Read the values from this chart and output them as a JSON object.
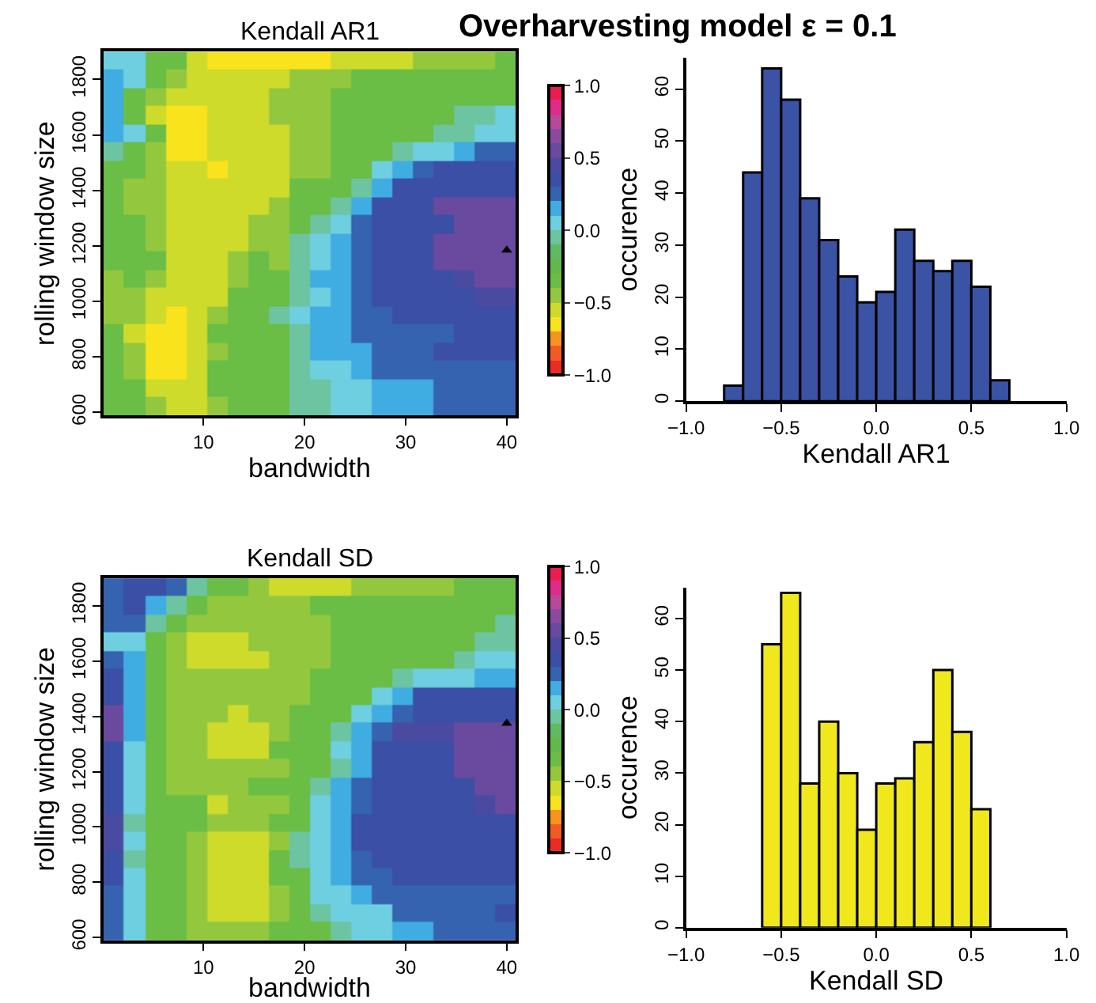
{
  "chart_data": [
    {
      "type": "heatmap",
      "title": "Kendall AR1",
      "xlabel": "bandwidth",
      "ylabel": "rolling window size",
      "annotations": [
        "Overharvesting model ε = 0.1"
      ],
      "x": [
        1.1,
        3.2,
        5.2,
        7.3,
        9.3,
        11.3,
        13.4,
        15.4,
        17.4,
        19.5,
        21.5,
        23.5,
        25.6,
        27.6,
        29.7,
        31.7,
        33.7,
        35.8,
        37.8,
        39.8
      ],
      "y": [
        1867,
        1802,
        1736,
        1671,
        1605,
        1540,
        1474,
        1409,
        1343,
        1278,
        1212,
        1147,
        1081,
        1016,
        950,
        885,
        819,
        754,
        688,
        623
      ],
      "xlim": [
        0.1,
        40.9
      ],
      "xticks": [
        10,
        20,
        30,
        40
      ],
      "ylim": [
        590,
        1900
      ],
      "yticks": [
        600,
        800,
        1000,
        1200,
        1400,
        1600,
        1800
      ],
      "clim": [
        -1,
        1
      ],
      "cticks": [
        {
          "value": -1,
          "label": "−1.0"
        },
        {
          "value": -0.5,
          "label": "−0.5"
        },
        {
          "value": 0,
          "label": "0.0"
        },
        {
          "value": 0.5,
          "label": "0.5"
        },
        {
          "value": 1,
          "label": "1.0"
        }
      ],
      "colors": [
        "#ee2a24",
        "#f15a24",
        "#f7941d",
        "#f9e31c",
        "#cfdb2b",
        "#93c83e",
        "#6abd45",
        "#62b94a",
        "#5fba62",
        "#6cc5a0",
        "#6dcfe0",
        "#3fade2",
        "#3563b0",
        "#3a4fa5",
        "#4a4ba0",
        "#6a4a9f",
        "#8a4a9f",
        "#b8489a",
        "#e22a8a",
        "#ec1c4f"
      ],
      "series": [
        {
          "type": "scatter",
          "x": [
            40
          ],
          "values": [
            1185
          ],
          "color": "#000000",
          "marker": "triangle"
        }
      ],
      "cells": [
        [
          0.05,
          0.05,
          -0.35,
          -0.35,
          -0.55,
          -0.65,
          -0.65,
          -0.65,
          -0.65,
          -0.65,
          -0.65,
          -0.55,
          -0.55,
          -0.55,
          -0.55,
          -0.45,
          -0.45,
          -0.45,
          -0.45,
          -0.35
        ],
        [
          0.15,
          0.05,
          -0.35,
          -0.45,
          -0.55,
          -0.55,
          -0.55,
          -0.55,
          -0.55,
          -0.45,
          -0.45,
          -0.45,
          -0.35,
          -0.35,
          -0.35,
          -0.35,
          -0.35,
          -0.35,
          -0.35,
          -0.35
        ],
        [
          0.15,
          -0.35,
          -0.45,
          -0.55,
          -0.55,
          -0.55,
          -0.55,
          -0.55,
          -0.45,
          -0.45,
          -0.45,
          -0.35,
          -0.35,
          -0.35,
          -0.35,
          -0.35,
          -0.35,
          -0.35,
          -0.35,
          -0.35
        ],
        [
          0.15,
          -0.35,
          -0.55,
          -0.65,
          -0.65,
          -0.55,
          -0.55,
          -0.55,
          -0.45,
          -0.45,
          -0.45,
          -0.35,
          -0.35,
          -0.35,
          -0.35,
          -0.35,
          -0.35,
          -0.05,
          -0.05,
          0.05
        ],
        [
          0.15,
          0.05,
          -0.35,
          -0.65,
          -0.65,
          -0.55,
          -0.55,
          -0.55,
          -0.55,
          -0.45,
          -0.45,
          -0.35,
          -0.35,
          -0.35,
          -0.35,
          -0.35,
          -0.05,
          -0.05,
          0.05,
          0.05
        ],
        [
          -0.05,
          -0.35,
          -0.45,
          -0.65,
          -0.65,
          -0.55,
          -0.55,
          -0.55,
          -0.55,
          -0.45,
          -0.45,
          -0.35,
          -0.35,
          -0.35,
          -0.05,
          0.05,
          0.05,
          0.15,
          0.25,
          0.25
        ],
        [
          -0.35,
          -0.35,
          -0.45,
          -0.55,
          -0.55,
          -0.65,
          -0.55,
          -0.55,
          -0.55,
          -0.45,
          -0.45,
          -0.35,
          -0.35,
          0.05,
          0.15,
          0.25,
          0.35,
          0.35,
          0.35,
          0.35
        ],
        [
          -0.35,
          -0.45,
          -0.45,
          -0.55,
          -0.55,
          -0.55,
          -0.55,
          -0.55,
          -0.55,
          -0.35,
          -0.35,
          -0.35,
          -0.05,
          0.15,
          0.35,
          0.35,
          0.35,
          0.35,
          0.35,
          0.35
        ],
        [
          -0.35,
          -0.45,
          -0.45,
          -0.55,
          -0.55,
          -0.55,
          -0.55,
          -0.55,
          -0.45,
          -0.35,
          -0.35,
          -0.05,
          0.15,
          0.35,
          0.35,
          0.35,
          0.55,
          0.55,
          0.55,
          0.55
        ],
        [
          -0.35,
          -0.35,
          -0.45,
          -0.55,
          -0.55,
          -0.55,
          -0.55,
          -0.45,
          -0.45,
          -0.35,
          -0.05,
          0.05,
          0.25,
          0.35,
          0.35,
          0.35,
          0.35,
          0.55,
          0.55,
          0.55
        ],
        [
          -0.35,
          -0.35,
          -0.45,
          -0.55,
          -0.55,
          -0.55,
          -0.55,
          -0.45,
          -0.45,
          -0.05,
          0.05,
          0.15,
          0.25,
          0.35,
          0.35,
          0.35,
          0.55,
          0.55,
          0.55,
          0.55
        ],
        [
          -0.35,
          -0.35,
          -0.35,
          -0.55,
          -0.55,
          -0.55,
          -0.45,
          -0.35,
          -0.45,
          -0.05,
          0.05,
          0.15,
          0.25,
          0.35,
          0.35,
          0.35,
          0.55,
          0.55,
          0.55,
          0.55
        ],
        [
          -0.45,
          -0.35,
          -0.45,
          -0.55,
          -0.55,
          -0.55,
          -0.45,
          -0.35,
          -0.35,
          -0.05,
          0.15,
          0.15,
          0.25,
          0.35,
          0.35,
          0.35,
          0.35,
          0.45,
          0.55,
          0.55
        ],
        [
          -0.45,
          -0.45,
          -0.55,
          -0.55,
          -0.55,
          -0.55,
          -0.35,
          -0.35,
          -0.35,
          -0.05,
          0.05,
          0.15,
          0.25,
          0.35,
          0.35,
          0.35,
          0.35,
          0.35,
          0.45,
          0.45
        ],
        [
          -0.45,
          -0.45,
          -0.55,
          -0.65,
          -0.55,
          -0.45,
          -0.35,
          -0.35,
          -0.05,
          0.05,
          0.15,
          0.15,
          0.25,
          0.25,
          0.35,
          0.35,
          0.35,
          0.35,
          0.35,
          0.35
        ],
        [
          -0.35,
          -0.55,
          -0.65,
          -0.65,
          -0.55,
          -0.35,
          -0.35,
          -0.35,
          -0.35,
          -0.05,
          0.15,
          0.15,
          0.25,
          0.25,
          0.25,
          0.25,
          0.25,
          0.35,
          0.35,
          0.35
        ],
        [
          -0.35,
          -0.45,
          -0.65,
          -0.65,
          -0.55,
          -0.45,
          -0.35,
          -0.35,
          -0.35,
          -0.05,
          0.15,
          0.15,
          0.15,
          0.25,
          0.25,
          0.25,
          0.35,
          0.35,
          0.35,
          0.35
        ],
        [
          -0.35,
          -0.45,
          -0.65,
          -0.65,
          -0.55,
          -0.35,
          -0.35,
          -0.35,
          -0.35,
          -0.05,
          0.05,
          0.05,
          0.15,
          0.25,
          0.25,
          0.25,
          0.25,
          0.25,
          0.25,
          0.25
        ],
        [
          -0.35,
          -0.35,
          -0.55,
          -0.55,
          -0.55,
          -0.35,
          -0.35,
          -0.35,
          -0.35,
          -0.05,
          -0.05,
          0.05,
          0.05,
          0.15,
          0.15,
          0.15,
          0.25,
          0.25,
          0.25,
          0.25
        ],
        [
          -0.35,
          -0.35,
          -0.45,
          -0.55,
          -0.55,
          -0.45,
          -0.35,
          -0.35,
          -0.35,
          -0.05,
          -0.05,
          0.05,
          0.05,
          0.15,
          0.15,
          0.15,
          0.25,
          0.25,
          0.25,
          0.25
        ]
      ]
    },
    {
      "type": "histogram",
      "xlabel": "Kendall AR1",
      "ylabel": "occurence",
      "color": "#3a53a4",
      "bins": [
        -0.8,
        -0.7,
        -0.6,
        -0.5,
        -0.4,
        -0.3,
        -0.2,
        -0.1,
        0.0,
        0.1,
        0.2,
        0.3,
        0.4,
        0.5,
        0.6,
        0.7
      ],
      "values": [
        3,
        44,
        64,
        58,
        39,
        31,
        24,
        19,
        21,
        33,
        27,
        25,
        27,
        22,
        4
      ],
      "xlim": [
        -1,
        1
      ],
      "xticks": [
        {
          "value": -1,
          "label": "−1.0"
        },
        {
          "value": -0.5,
          "label": "−0.5"
        },
        {
          "value": 0,
          "label": "0.0"
        },
        {
          "value": 0.5,
          "label": "0.5"
        },
        {
          "value": 1,
          "label": "1.0"
        }
      ],
      "ylim": [
        0,
        66
      ],
      "yticks": [
        0,
        10,
        20,
        30,
        40,
        50,
        60
      ]
    },
    {
      "type": "heatmap",
      "title": "Kendall SD",
      "xlabel": "bandwidth",
      "ylabel": "rolling window size",
      "x": [
        1.1,
        3.2,
        5.2,
        7.3,
        9.3,
        11.3,
        13.4,
        15.4,
        17.4,
        19.5,
        21.5,
        23.5,
        25.6,
        27.6,
        29.7,
        31.7,
        33.7,
        35.8,
        37.8,
        39.8
      ],
      "y": [
        1867,
        1802,
        1736,
        1671,
        1605,
        1540,
        1474,
        1409,
        1343,
        1278,
        1212,
        1147,
        1081,
        1016,
        950,
        885,
        819,
        754,
        688,
        623
      ],
      "xlim": [
        0.1,
        40.9
      ],
      "xticks": [
        10,
        20,
        30,
        40
      ],
      "ylim": [
        590,
        1900
      ],
      "yticks": [
        600,
        800,
        1000,
        1200,
        1400,
        1600,
        1800
      ],
      "clim": [
        -1,
        1
      ],
      "cticks": [
        {
          "value": -1,
          "label": "−1.0"
        },
        {
          "value": -0.5,
          "label": "−0.5"
        },
        {
          "value": 0,
          "label": "0.0"
        },
        {
          "value": 0.5,
          "label": "0.5"
        },
        {
          "value": 1,
          "label": "1.0"
        }
      ],
      "colors": [
        "#ee2a24",
        "#f15a24",
        "#f7941d",
        "#f9e31c",
        "#cfdb2b",
        "#93c83e",
        "#6abd45",
        "#62b94a",
        "#5fba62",
        "#6cc5a0",
        "#6dcfe0",
        "#3fade2",
        "#3563b0",
        "#3a4fa5",
        "#4a4ba0",
        "#6a4a9f",
        "#8a4a9f",
        "#b8489a",
        "#e22a8a",
        "#ec1c4f"
      ],
      "series": [
        {
          "type": "scatter",
          "x": [
            40
          ],
          "values": [
            1375
          ],
          "color": "#000000",
          "marker": "triangle"
        }
      ],
      "cells": [
        [
          0.25,
          0.35,
          0.35,
          0.25,
          -0.05,
          -0.35,
          -0.35,
          -0.45,
          -0.55,
          -0.55,
          -0.55,
          -0.55,
          -0.45,
          -0.45,
          -0.45,
          -0.45,
          -0.45,
          -0.35,
          -0.35,
          -0.35
        ],
        [
          0.25,
          0.35,
          0.15,
          -0.05,
          -0.35,
          -0.45,
          -0.45,
          -0.45,
          -0.45,
          -0.45,
          -0.35,
          -0.35,
          -0.35,
          -0.35,
          -0.35,
          -0.35,
          -0.35,
          -0.35,
          -0.35,
          -0.35
        ],
        [
          0.25,
          0.25,
          -0.05,
          -0.35,
          -0.45,
          -0.45,
          -0.45,
          -0.45,
          -0.45,
          -0.45,
          -0.45,
          -0.35,
          -0.35,
          -0.35,
          -0.35,
          -0.35,
          -0.35,
          -0.35,
          -0.35,
          -0.05
        ],
        [
          0.05,
          0.05,
          -0.35,
          -0.45,
          -0.55,
          -0.55,
          -0.55,
          -0.45,
          -0.45,
          -0.45,
          -0.45,
          -0.35,
          -0.35,
          -0.35,
          -0.35,
          -0.35,
          -0.35,
          -0.35,
          -0.05,
          -0.05
        ],
        [
          0.25,
          0.15,
          -0.35,
          -0.45,
          -0.55,
          -0.55,
          -0.55,
          -0.55,
          -0.45,
          -0.45,
          -0.45,
          -0.35,
          -0.35,
          -0.35,
          -0.35,
          -0.35,
          -0.35,
          -0.05,
          0.05,
          0.05
        ],
        [
          0.35,
          0.15,
          -0.35,
          -0.45,
          -0.45,
          -0.45,
          -0.45,
          -0.45,
          -0.45,
          -0.45,
          -0.35,
          -0.35,
          -0.35,
          -0.35,
          -0.05,
          0.05,
          0.05,
          0.05,
          0.15,
          0.15
        ],
        [
          0.35,
          0.15,
          -0.35,
          -0.45,
          -0.45,
          -0.45,
          -0.45,
          -0.45,
          -0.45,
          -0.45,
          -0.35,
          -0.35,
          -0.35,
          0.05,
          0.15,
          0.35,
          0.35,
          0.35,
          0.35,
          0.35
        ],
        [
          0.55,
          0.15,
          -0.35,
          -0.45,
          -0.45,
          -0.45,
          -0.55,
          -0.45,
          -0.45,
          -0.35,
          -0.35,
          -0.35,
          0.05,
          0.15,
          0.25,
          0.35,
          0.35,
          0.35,
          0.35,
          0.35
        ],
        [
          0.55,
          0.15,
          -0.35,
          -0.45,
          -0.45,
          -0.55,
          -0.55,
          -0.55,
          -0.45,
          -0.35,
          -0.35,
          -0.05,
          0.15,
          0.25,
          0.45,
          0.45,
          0.45,
          0.55,
          0.55,
          0.55
        ],
        [
          0.35,
          0.05,
          -0.35,
          -0.45,
          -0.45,
          -0.55,
          -0.55,
          -0.55,
          -0.35,
          -0.35,
          -0.35,
          0.05,
          0.15,
          0.35,
          0.35,
          0.35,
          0.35,
          0.55,
          0.55,
          0.55
        ],
        [
          0.35,
          0.05,
          -0.35,
          -0.45,
          -0.45,
          -0.45,
          -0.45,
          -0.45,
          -0.45,
          -0.35,
          -0.35,
          -0.05,
          0.15,
          0.35,
          0.35,
          0.35,
          0.35,
          0.55,
          0.55,
          0.55
        ],
        [
          0.35,
          0.05,
          -0.35,
          -0.45,
          -0.45,
          -0.45,
          -0.45,
          -0.35,
          -0.35,
          -0.35,
          -0.05,
          0.15,
          0.25,
          0.35,
          0.35,
          0.35,
          0.35,
          0.35,
          0.55,
          0.55
        ],
        [
          0.35,
          0.05,
          -0.35,
          -0.35,
          -0.35,
          -0.55,
          -0.45,
          -0.45,
          -0.45,
          -0.35,
          0.05,
          0.15,
          0.25,
          0.35,
          0.35,
          0.35,
          0.35,
          0.35,
          0.45,
          0.55
        ],
        [
          0.45,
          -0.05,
          -0.35,
          -0.35,
          -0.35,
          -0.45,
          -0.45,
          -0.45,
          -0.35,
          -0.35,
          0.05,
          0.15,
          0.35,
          0.35,
          0.35,
          0.35,
          0.35,
          0.35,
          0.35,
          0.35
        ],
        [
          0.45,
          0.05,
          -0.35,
          -0.35,
          -0.45,
          -0.55,
          -0.55,
          -0.55,
          -0.45,
          -0.05,
          0.05,
          0.15,
          0.35,
          0.35,
          0.35,
          0.35,
          0.35,
          0.35,
          0.35,
          0.35
        ],
        [
          0.35,
          -0.05,
          -0.35,
          -0.35,
          -0.45,
          -0.55,
          -0.55,
          -0.55,
          -0.35,
          -0.05,
          0.05,
          0.15,
          0.25,
          0.35,
          0.35,
          0.35,
          0.35,
          0.35,
          0.35,
          0.35
        ],
        [
          0.35,
          0.05,
          -0.35,
          -0.35,
          -0.45,
          -0.55,
          -0.55,
          -0.55,
          -0.35,
          -0.35,
          0.05,
          0.15,
          0.25,
          0.25,
          0.35,
          0.35,
          0.35,
          0.35,
          0.35,
          0.35
        ],
        [
          0.25,
          0.05,
          -0.35,
          -0.35,
          -0.45,
          -0.55,
          -0.55,
          -0.55,
          -0.45,
          -0.35,
          0.05,
          0.05,
          0.15,
          0.25,
          0.25,
          0.25,
          0.25,
          0.25,
          0.25,
          0.25
        ],
        [
          0.25,
          0.05,
          -0.35,
          -0.35,
          -0.45,
          -0.55,
          -0.55,
          -0.55,
          -0.45,
          -0.35,
          -0.05,
          0.05,
          0.05,
          0.05,
          0.25,
          0.25,
          0.25,
          0.25,
          0.25,
          0.35
        ],
        [
          0.25,
          0.05,
          -0.35,
          -0.35,
          -0.45,
          -0.45,
          -0.45,
          -0.45,
          -0.35,
          -0.35,
          -0.35,
          -0.05,
          0.05,
          0.05,
          0.15,
          0.15,
          0.25,
          0.25,
          0.25,
          0.25
        ]
      ]
    },
    {
      "type": "histogram",
      "xlabel": "Kendall SD",
      "ylabel": "occurence",
      "color": "#f0e81c",
      "bins": [
        -0.6,
        -0.5,
        -0.4,
        -0.3,
        -0.2,
        -0.1,
        0.0,
        0.1,
        0.2,
        0.3,
        0.4,
        0.5,
        0.6
      ],
      "values": [
        55,
        65,
        28,
        40,
        30,
        19,
        28,
        29,
        36,
        50,
        38,
        23
      ],
      "xlim": [
        -1,
        1
      ],
      "xticks": [
        {
          "value": -1,
          "label": "−1.0"
        },
        {
          "value": -0.5,
          "label": "−0.5"
        },
        {
          "value": 0,
          "label": "0.0"
        },
        {
          "value": 0.5,
          "label": "0.5"
        },
        {
          "value": 1,
          "label": "1.0"
        }
      ],
      "ylim": [
        0,
        66
      ],
      "yticks": [
        0,
        10,
        20,
        30,
        40,
        50,
        60
      ]
    }
  ]
}
